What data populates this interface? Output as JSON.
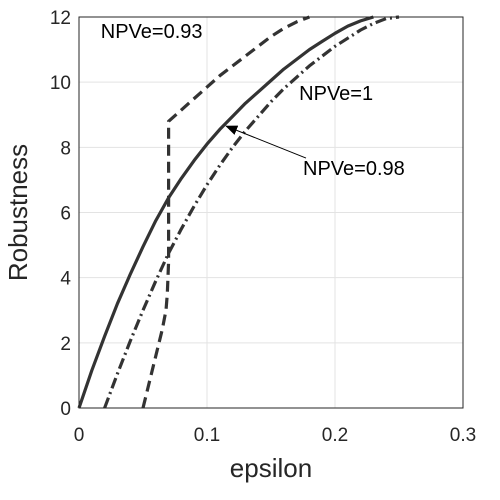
{
  "chart_data": {
    "type": "line",
    "title": "",
    "xlabel": "epsilon",
    "ylabel": "Robustness",
    "xlim": [
      0,
      0.3
    ],
    "ylim": [
      0,
      12
    ],
    "xticks": [
      0,
      0.1,
      0.2,
      0.3
    ],
    "xtick_labels": [
      "0",
      "0.1",
      "0.2",
      "0.3"
    ],
    "yticks": [
      0,
      2,
      4,
      6,
      8,
      10,
      12
    ],
    "ytick_labels": [
      "0",
      "2",
      "4",
      "6",
      "8",
      "10",
      "12"
    ],
    "grid": true,
    "legend": "none",
    "series": [
      {
        "name": "NPVe=1",
        "style": "solid",
        "color": "#333333",
        "x": [
          0,
          0.01,
          0.02,
          0.03,
          0.04,
          0.05,
          0.06,
          0.07,
          0.08,
          0.09,
          0.1,
          0.11,
          0.12,
          0.13,
          0.14,
          0.15,
          0.16,
          0.17,
          0.18,
          0.19,
          0.2,
          0.21,
          0.22,
          0.23
        ],
        "y": [
          0,
          1.15,
          2.2,
          3.2,
          4.1,
          4.95,
          5.75,
          6.45,
          7.05,
          7.6,
          8.1,
          8.55,
          8.95,
          9.35,
          9.7,
          10.05,
          10.4,
          10.7,
          11.0,
          11.25,
          11.5,
          11.72,
          11.88,
          12.0
        ]
      },
      {
        "name": "NPVe=0.98",
        "style": "dashdot",
        "color": "#333333",
        "x": [
          0.02,
          0.03,
          0.04,
          0.05,
          0.06,
          0.07,
          0.08,
          0.09,
          0.1,
          0.11,
          0.12,
          0.13,
          0.14,
          0.15,
          0.16,
          0.17,
          0.18,
          0.19,
          0.2,
          0.21,
          0.22,
          0.23,
          0.24,
          0.25
        ],
        "y": [
          0,
          1.05,
          2.05,
          3.0,
          3.9,
          4.75,
          5.5,
          6.2,
          6.85,
          7.45,
          8.0,
          8.5,
          8.95,
          9.4,
          9.8,
          10.15,
          10.5,
          10.8,
          11.1,
          11.35,
          11.6,
          11.8,
          11.95,
          12.0
        ]
      },
      {
        "name": "NPVe=0.93",
        "style": "dashed",
        "color": "#333333",
        "x": [
          0.05,
          0.055,
          0.06,
          0.065,
          0.068,
          0.069,
          0.07,
          0.07,
          0.08,
          0.09,
          0.1,
          0.11,
          0.12,
          0.13,
          0.14,
          0.15,
          0.16,
          0.17,
          0.18
        ],
        "y": [
          0,
          0.8,
          1.6,
          2.4,
          3.0,
          3.5,
          4.5,
          8.8,
          9.15,
          9.5,
          9.85,
          10.2,
          10.5,
          10.8,
          11.1,
          11.4,
          11.65,
          11.85,
          12.0
        ]
      }
    ],
    "annotations": [
      {
        "text": "NPVe=0.93",
        "x": 0.017,
        "y": 11.35,
        "arrow": false
      },
      {
        "text": "NPVe=1",
        "x": 0.172,
        "y": 9.45,
        "arrow": false
      },
      {
        "text": "NPVe=0.98",
        "x": 0.175,
        "y": 7.15,
        "arrow": true,
        "arrow_to_x": 0.115,
        "arrow_to_y": 8.65
      }
    ]
  }
}
